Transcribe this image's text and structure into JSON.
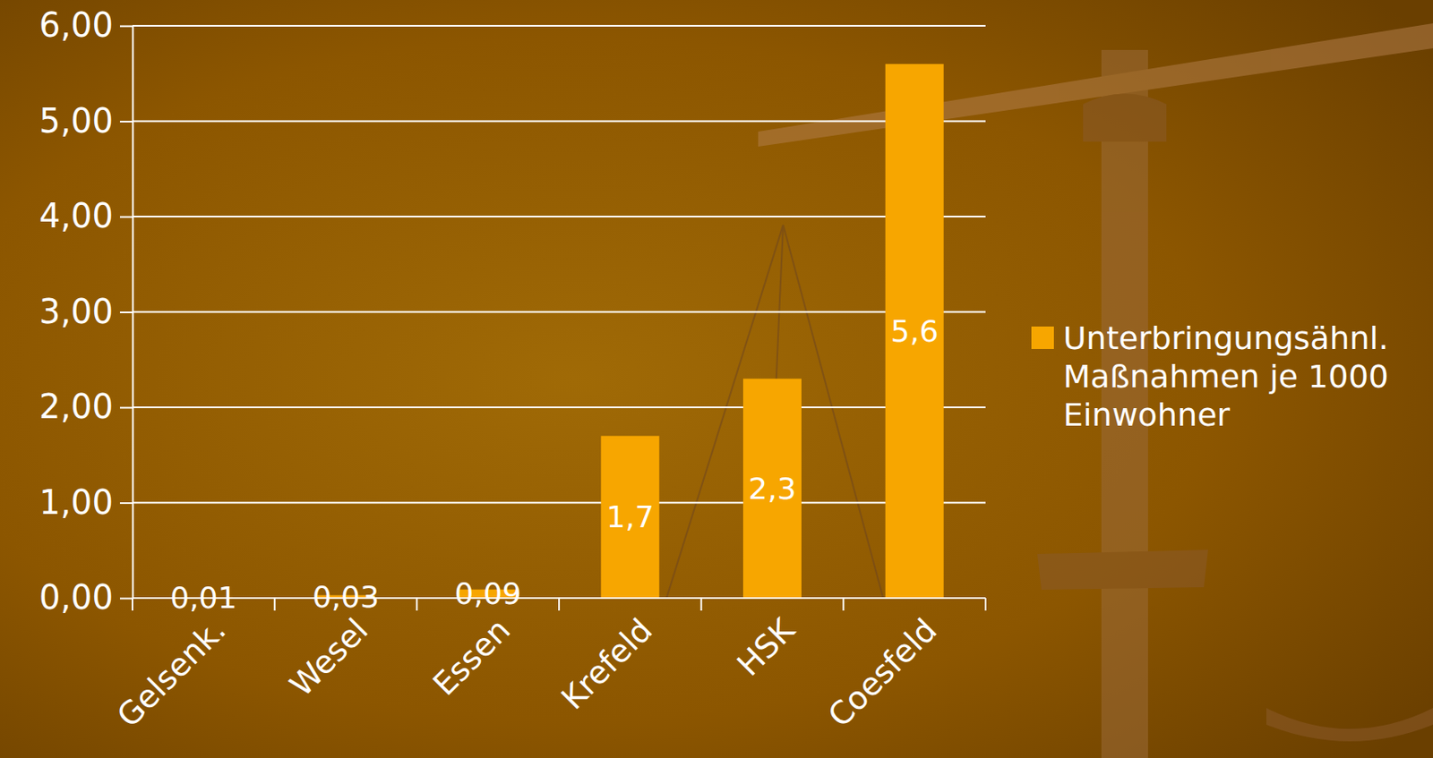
{
  "chart_data": {
    "type": "bar",
    "categories": [
      "Gelsenk.",
      "Wesel",
      "Essen",
      "Krefeld",
      "HSK",
      "Coesfeld"
    ],
    "series": [
      {
        "name": "Unterbringungsähnl. Maßnahmen je 1000 Einwohner",
        "color": "#f7a600",
        "values": [
          0.01,
          0.03,
          0.09,
          1.7,
          2.3,
          5.6
        ],
        "value_labels": [
          "0,01",
          "0,03",
          "0,09",
          "1,7",
          "2,3",
          "5,6"
        ]
      }
    ],
    "ylim": [
      0,
      6
    ],
    "yticks": [
      {
        "value": 0,
        "label": "0,00"
      },
      {
        "value": 1,
        "label": "1,00"
      },
      {
        "value": 2,
        "label": "2,00"
      },
      {
        "value": 3,
        "label": "3,00"
      },
      {
        "value": 4,
        "label": "4,00"
      },
      {
        "value": 5,
        "label": "5,00"
      },
      {
        "value": 6,
        "label": "6,00"
      }
    ],
    "grid": true,
    "legend": "right",
    "data_labels": true
  }
}
